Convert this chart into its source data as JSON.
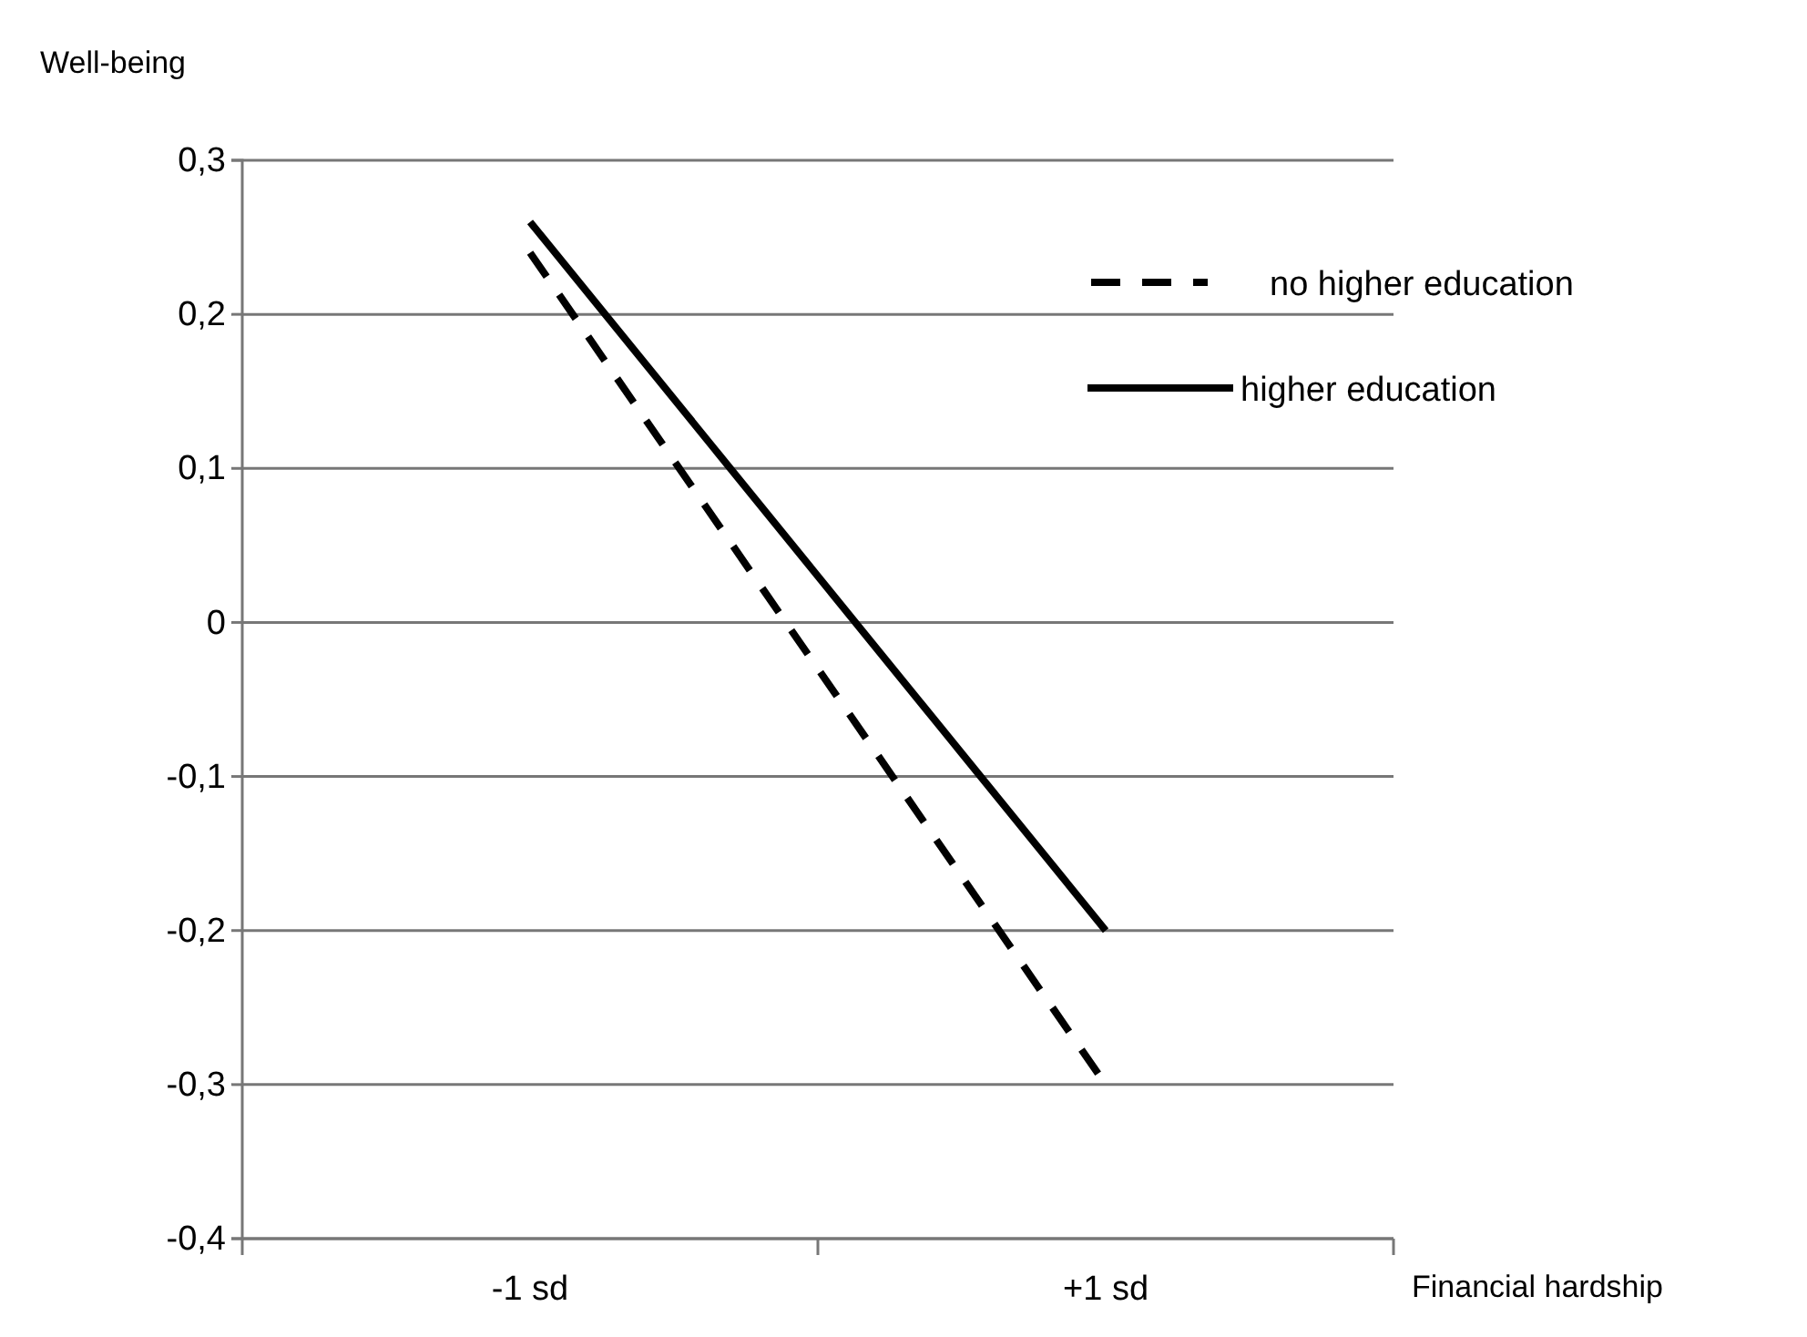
{
  "chart_data": {
    "type": "line",
    "xlabel": "Financial hardship",
    "ylabel": "Well-being",
    "categories": [
      "-1 sd",
      "+1 sd"
    ],
    "series": [
      {
        "name": "no higher education",
        "color": "#000000",
        "line_style": "dashed",
        "values": [
          0.24,
          -0.3
        ]
      },
      {
        "name": "higher education",
        "color": "#000000",
        "line_style": "solid",
        "values": [
          0.26,
          -0.2
        ]
      }
    ],
    "ylim": [
      -0.4,
      0.3
    ],
    "yticks": [
      {
        "value": -0.4,
        "label": "-0,4"
      },
      {
        "value": -0.3,
        "label": "-0,3"
      },
      {
        "value": -0.2,
        "label": "-0,2"
      },
      {
        "value": -0.1,
        "label": "-0,1"
      },
      0,
      {
        "value": 0.1,
        "label": "0,1"
      },
      {
        "value": 0.2,
        "label": "0,2"
      },
      {
        "value": 0.3,
        "label": "0,3"
      }
    ],
    "grid": "y",
    "legend": "top right",
    "marker": "none"
  }
}
